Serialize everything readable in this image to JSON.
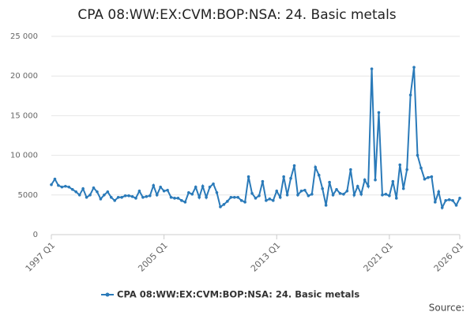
{
  "chart_data": {
    "type": "line",
    "title": "CPA 08:WW:EX:CVM:BOP:NSA: 24. Basic metals",
    "source": "Source:",
    "categories": [
      "1997 Q1",
      null,
      null,
      null,
      null,
      null,
      null,
      null,
      null,
      null,
      null,
      null,
      null,
      null,
      null,
      null,
      null,
      null,
      null,
      null,
      null,
      null,
      null,
      null,
      null,
      null,
      null,
      null,
      null,
      null,
      null,
      null,
      "2005 Q1",
      null,
      null,
      null,
      null,
      null,
      null,
      null,
      null,
      null,
      null,
      null,
      null,
      null,
      null,
      null,
      null,
      null,
      null,
      null,
      null,
      null,
      null,
      null,
      null,
      null,
      null,
      null,
      null,
      null,
      null,
      null,
      "2013 Q1",
      null,
      null,
      null,
      null,
      null,
      null,
      null,
      null,
      null,
      null,
      null,
      null,
      null,
      null,
      null,
      null,
      null,
      null,
      null,
      null,
      null,
      null,
      null,
      null,
      null,
      null,
      null,
      null,
      null,
      null,
      null,
      "2021 Q1",
      null,
      null,
      null,
      null,
      null,
      null,
      null,
      null,
      null,
      null,
      null,
      null,
      null,
      null,
      null,
      null,
      null,
      null,
      null,
      "2026 Q1"
    ],
    "series": [
      {
        "name": "CPA 08:WW:EX:CVM:BOP:NSA: 24. Basic metals",
        "color": "#2a7ab9",
        "values": [
          6300,
          7000,
          6200,
          6000,
          6100,
          6000,
          5700,
          5400,
          5000,
          5800,
          4700,
          5000,
          5900,
          5400,
          4500,
          5000,
          5400,
          4700,
          4300,
          4700,
          4700,
          4900,
          4900,
          4800,
          4600,
          5500,
          4700,
          4800,
          4900,
          6200,
          5000,
          6000,
          5500,
          5600,
          4700,
          4600,
          4600,
          4300,
          4100,
          5300,
          5100,
          6000,
          4700,
          6100,
          4700,
          6000,
          6400,
          5300,
          3500,
          3800,
          4200,
          4700,
          4700,
          4700,
          4300,
          4100,
          7300,
          5200,
          4600,
          4900,
          6700,
          4300,
          4500,
          4300,
          5500,
          4700,
          7300,
          5000,
          7100,
          8700,
          5000,
          5500,
          5600,
          4900,
          5100,
          8500,
          7500,
          5800,
          3700,
          6600,
          5000,
          5700,
          5200,
          5100,
          5500,
          8200,
          5000,
          6100,
          5100,
          6900,
          6100,
          20900,
          6900,
          15400,
          5000,
          5100,
          4900,
          6700,
          4600,
          8800,
          5800,
          8200,
          17600,
          21100,
          10000,
          8400,
          7000,
          7200,
          7300,
          4100,
          5400,
          3400,
          4300,
          4400,
          4300,
          3700,
          4600
        ]
      }
    ],
    "ylim": [
      0,
      25000
    ],
    "yticks": [
      0,
      {
        "value": 5000,
        "label": "5000"
      },
      {
        "value": 10000,
        "label": "10 000"
      },
      {
        "value": 15000,
        "label": "15 000"
      },
      {
        "value": 20000,
        "label": "20 000"
      },
      {
        "value": 25000,
        "label": "25 000"
      }
    ],
    "grid": true
  }
}
